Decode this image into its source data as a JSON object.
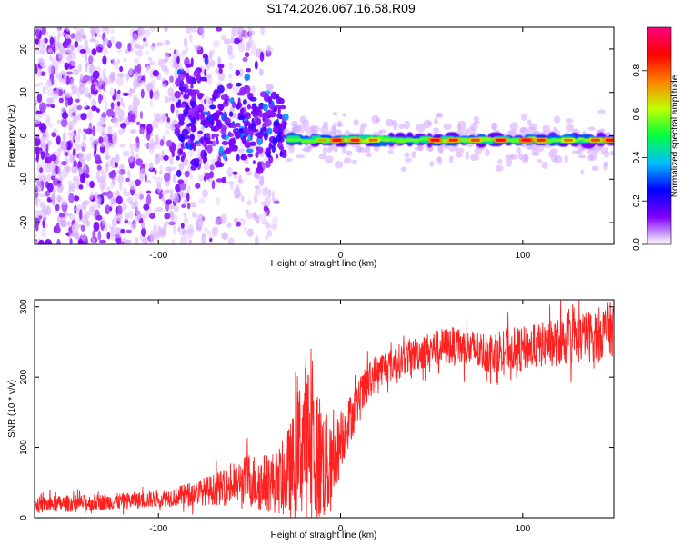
{
  "title": "S174.2026.067.16.58.R09",
  "chart_data": [
    {
      "type": "heatmap",
      "title": "S174.2026.067.16.58.R09",
      "xlabel": "Height of straight line (km)",
      "ylabel": "Frequency (Hz)",
      "xlim": [
        -168,
        150
      ],
      "ylim": [
        -25,
        25
      ],
      "x_ticks": [
        -100,
        0,
        100
      ],
      "y_ticks": [
        -20,
        -10,
        0,
        10,
        20
      ],
      "x_tick_labels": [
        "-100",
        "0",
        "100"
      ],
      "y_tick_labels": [
        "-20",
        "-10",
        "0",
        "10",
        "20"
      ],
      "colorbar": {
        "label": "Normalized spectral amplitude",
        "range": [
          0,
          1
        ],
        "ticks": [
          0.0,
          0.2,
          0.4,
          0.6,
          0.8
        ],
        "tick_labels": [
          "0.0",
          "0.2",
          "0.4",
          "0.6",
          "0.8"
        ],
        "colormap": [
          "#ffffff",
          "#8000ff",
          "#0000ff",
          "#00c0ff",
          "#00ff40",
          "#c0ff00",
          "#ff8000",
          "#ff0000",
          "#ff0080"
        ]
      },
      "features": [
        {
          "name": "scattered-noise-region",
          "x_range": [
            -168,
            -35
          ],
          "amplitude": 0.05
        },
        {
          "name": "transition-cluster",
          "x_range": [
            -90,
            -30
          ],
          "frequency_center": 3,
          "amplitude": 0.25
        },
        {
          "name": "signal-band",
          "x_range": [
            -30,
            150
          ],
          "frequency_center": -1,
          "amplitude": 0.8
        }
      ]
    },
    {
      "type": "line",
      "title": "",
      "xlabel": "Height of straight line (km)",
      "ylabel": "SNR (10 * v/v)",
      "xlim": [
        -168,
        150
      ],
      "ylim": [
        0,
        310
      ],
      "x_ticks": [
        -100,
        0,
        100
      ],
      "y_ticks": [
        0,
        100,
        200,
        300
      ],
      "x_tick_labels": [
        "-100",
        "0",
        "100"
      ],
      "y_tick_labels": [
        "0",
        "100",
        "200",
        "300"
      ],
      "series": [
        {
          "name": "SNR",
          "color": "#ff2020",
          "x": [
            -168,
            -150,
            -130,
            -110,
            -100,
            -90,
            -80,
            -70,
            -60,
            -55,
            -50,
            -45,
            -40,
            -35,
            -30,
            -25,
            -20,
            -15,
            -10,
            -5,
            0,
            5,
            10,
            15,
            20,
            30,
            40,
            50,
            60,
            70,
            80,
            90,
            100,
            110,
            120,
            130,
            140,
            150
          ],
          "y": [
            18,
            20,
            22,
            25,
            27,
            30,
            35,
            40,
            45,
            50,
            55,
            48,
            52,
            50,
            60,
            75,
            120,
            100,
            80,
            65,
            110,
            140,
            165,
            190,
            210,
            220,
            232,
            240,
            245,
            240,
            235,
            240,
            240,
            245,
            250,
            255,
            260,
            270
          ],
          "noise": [
            12,
            12,
            12,
            12,
            12,
            14,
            18,
            22,
            28,
            32,
            40,
            40,
            42,
            45,
            60,
            80,
            120,
            110,
            90,
            60,
            45,
            35,
            30,
            30,
            25,
            25,
            25,
            25,
            28,
            28,
            30,
            30,
            32,
            32,
            35,
            35,
            38,
            40
          ]
        }
      ]
    }
  ]
}
